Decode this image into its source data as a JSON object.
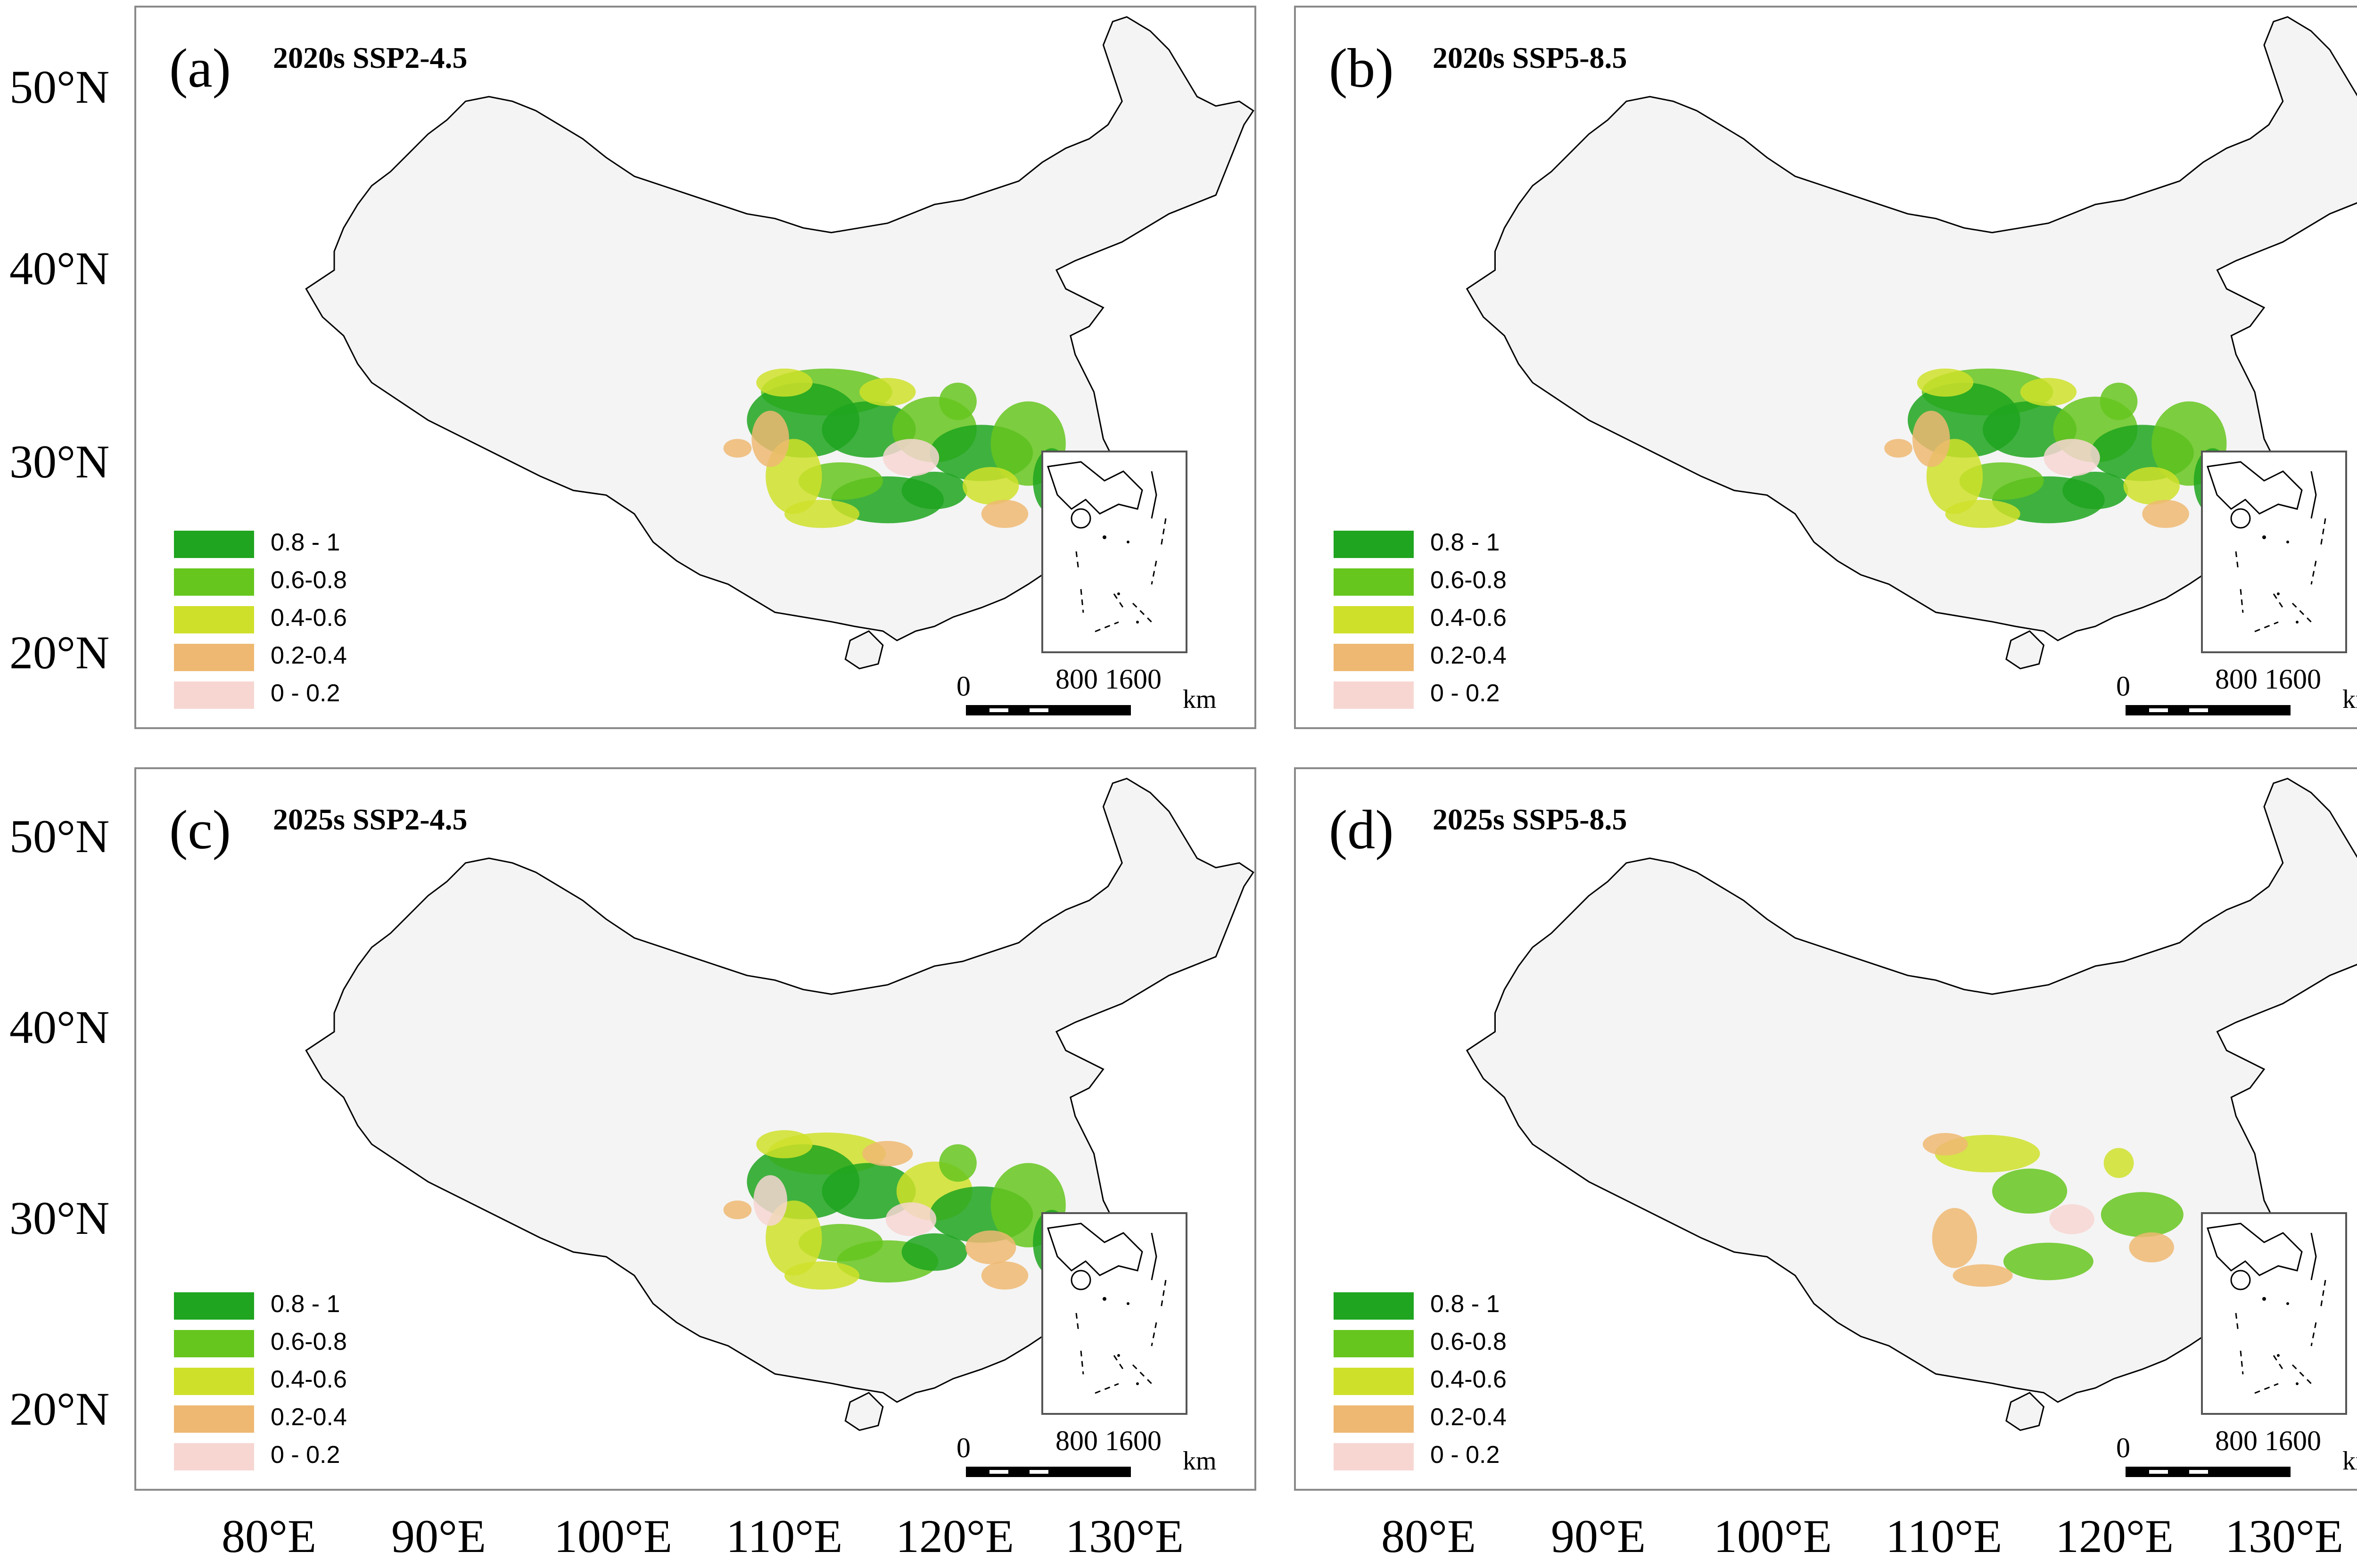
{
  "panels": [
    {
      "label": "(a)",
      "title": "2020s SSP2-4.5"
    },
    {
      "label": "(b)",
      "title": "2020s SSP5-8.5"
    },
    {
      "label": "(c)",
      "title": "2025s SSP2-4.5"
    },
    {
      "label": "(d)",
      "title": "2025s SSP5-8.5"
    }
  ],
  "legend": {
    "items": [
      {
        "label": "0.8 - 1",
        "color": "#1fa51f"
      },
      {
        "label": "0.6-0.8",
        "color": "#66c61e"
      },
      {
        "label": "0.4-0.6",
        "color": "#cfe02a"
      },
      {
        "label": "0.2-0.4",
        "color": "#eeb872"
      },
      {
        "label": "0 - 0.2",
        "color": "#f7d6d2"
      }
    ]
  },
  "scale_bar": {
    "ticks": [
      "0",
      "800 1600"
    ],
    "unit": "km"
  },
  "axes": {
    "lat_labels": [
      "50°N",
      "40°N",
      "30°N",
      "20°N"
    ],
    "lon_labels": [
      "80°E",
      "90°E",
      "100°E",
      "110°E",
      "120°E",
      "130°E"
    ]
  },
  "colors": {
    "land": "#f4f4f4",
    "border": "#000000"
  }
}
